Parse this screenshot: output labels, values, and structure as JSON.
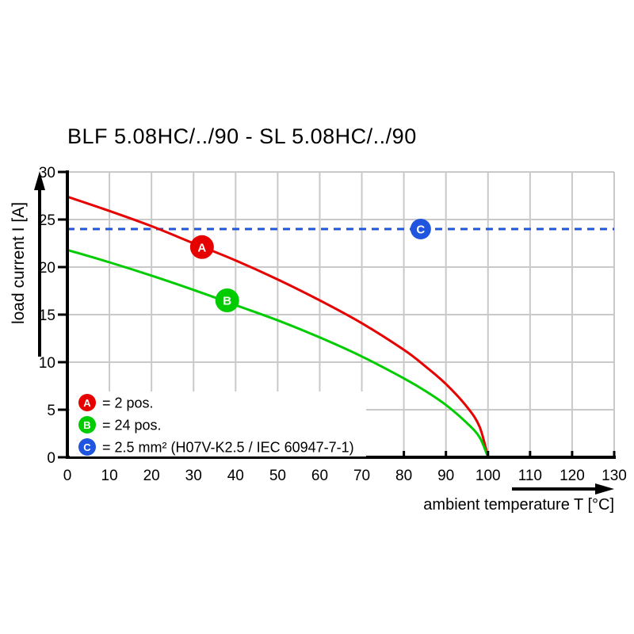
{
  "title": "BLF 5.08HC/../90 - SL 5.08HC/../90",
  "colors": {
    "red": "#e60000",
    "green": "#00cc00",
    "blue": "#2055e0",
    "grid": "#c9c9c9",
    "axis": "#000000",
    "background": "#ffffff",
    "marker_text": "#ffffff"
  },
  "axes": {
    "x": {
      "label": "ambient temperature T [°C]",
      "min": 0,
      "max": 130,
      "tick_step": 10,
      "ticks": [
        0,
        10,
        20,
        30,
        40,
        50,
        60,
        70,
        80,
        90,
        100,
        110,
        120,
        130
      ]
    },
    "y": {
      "label": "load current I [A]",
      "min": 0,
      "max": 30,
      "tick_step": 5,
      "ticks": [
        0,
        5,
        10,
        15,
        20,
        25,
        30
      ]
    }
  },
  "legend": {
    "position": "lower-left",
    "items": [
      {
        "id": "A",
        "color_key": "red",
        "label": "= 2 pos."
      },
      {
        "id": "B",
        "color_key": "green",
        "label": "= 24 pos."
      },
      {
        "id": "C",
        "color_key": "blue",
        "label": "= 2.5 mm² (H07V-K2.5 / IEC 60947-7-1)"
      }
    ]
  },
  "chart_data": {
    "type": "line",
    "title": "BLF 5.08HC/../90 - SL 5.08HC/../90",
    "xlabel": "ambient temperature T [°C]",
    "ylabel": "load current I [A]",
    "xlim": [
      0,
      130
    ],
    "ylim": [
      0,
      30
    ],
    "grid": true,
    "series": [
      {
        "name": "A",
        "description": "2 pos.",
        "color_key": "red",
        "line_style": "solid",
        "points": [
          [
            0,
            27.4
          ],
          [
            10,
            25.9
          ],
          [
            20,
            24.3
          ],
          [
            30,
            22.5
          ],
          [
            40,
            20.7
          ],
          [
            50,
            18.7
          ],
          [
            60,
            16.5
          ],
          [
            70,
            14.1
          ],
          [
            80,
            11.3
          ],
          [
            85,
            9.6
          ],
          [
            90,
            7.7
          ],
          [
            95,
            5.3
          ],
          [
            98,
            3.2
          ],
          [
            100,
            0
          ]
        ],
        "marker": {
          "letter": "A",
          "x": 32,
          "y": 22.1
        }
      },
      {
        "name": "B",
        "description": "24 pos.",
        "color_key": "green",
        "line_style": "solid",
        "points": [
          [
            0,
            21.8
          ],
          [
            10,
            20.5
          ],
          [
            20,
            19.1
          ],
          [
            30,
            17.6
          ],
          [
            40,
            16.0
          ],
          [
            50,
            14.4
          ],
          [
            60,
            12.6
          ],
          [
            70,
            10.6
          ],
          [
            80,
            8.3
          ],
          [
            85,
            7.0
          ],
          [
            90,
            5.5
          ],
          [
            95,
            3.6
          ],
          [
            98,
            2.1
          ],
          [
            100,
            0
          ]
        ],
        "marker": {
          "letter": "B",
          "x": 38,
          "y": 16.5
        }
      },
      {
        "name": "C",
        "description": "2.5 mm² (H07V-K2.5 / IEC 60947-7-1)",
        "color_key": "blue",
        "line_style": "dashed",
        "constant_y": 24,
        "points": [
          [
            0,
            24
          ],
          [
            130,
            24
          ]
        ],
        "marker": {
          "letter": "C",
          "x": 84,
          "y": 24
        }
      }
    ]
  }
}
